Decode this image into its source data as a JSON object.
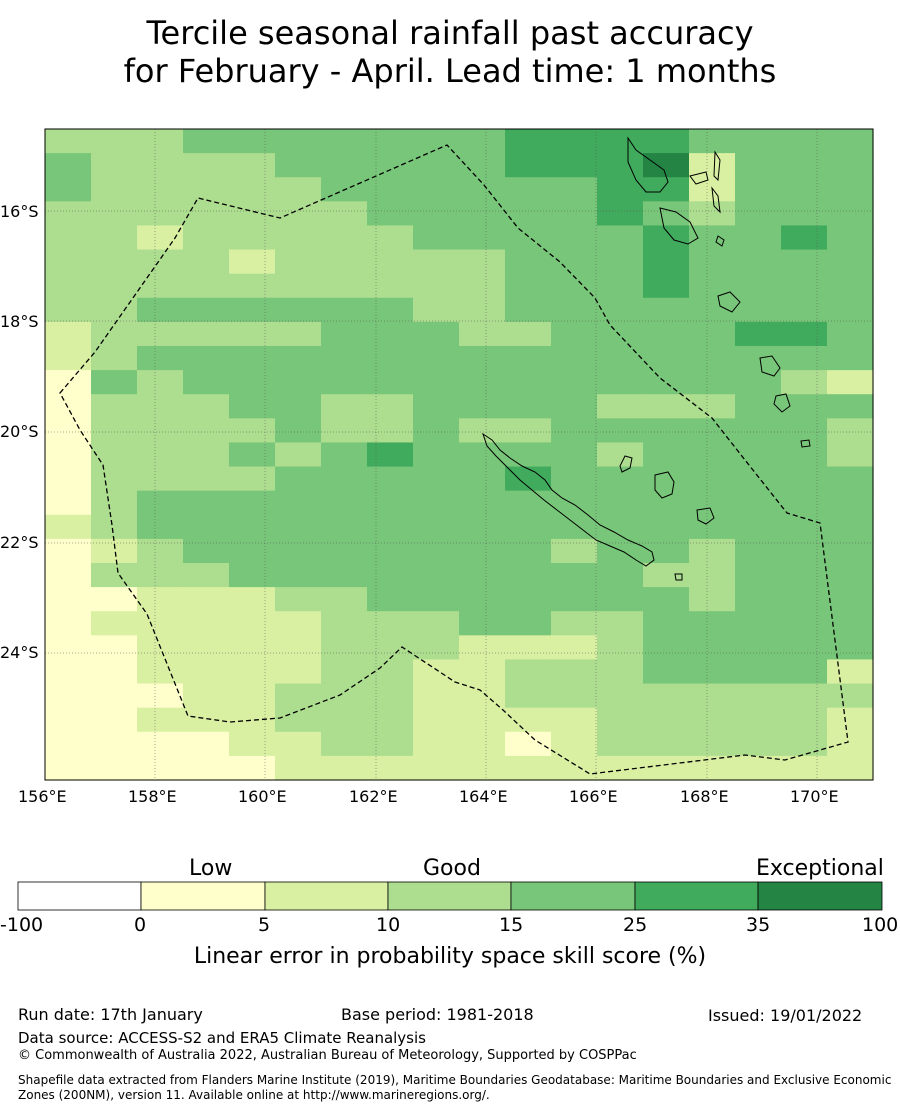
{
  "title": {
    "line1": "Tercile seasonal rainfall past accuracy",
    "line2": "for February - April. Lead time: 1 months"
  },
  "map": {
    "lat_labels": [
      "16°S",
      "18°S",
      "20°S",
      "22°S",
      "24°S"
    ],
    "lon_labels": [
      "156°E",
      "158°E",
      "160°E",
      "162°E",
      "164°E",
      "166°E",
      "168°E",
      "170°E"
    ],
    "boundary_style": "dashed",
    "grid": true
  },
  "colorbar": {
    "category_words": [
      "Low",
      "Good",
      "Exceptional"
    ],
    "ticks": [
      "-100",
      "0",
      "5",
      "10",
      "15",
      "25",
      "35",
      "100"
    ],
    "colors": [
      "#ffffff",
      "#ffffcc",
      "#d9f0a3",
      "#addd8e",
      "#78c679",
      "#41ab5d",
      "#238443"
    ],
    "label": "Linear error in probability space skill score (%)"
  },
  "footer": {
    "run_date": "Run date: 17th January",
    "base_period": "Base period: 1981-2018",
    "issued": "Issued: 19/01/2022",
    "data_source": "Data source: ACCESS-S2 and ERA5 Climate Reanalysis",
    "copyright": "© Commonwealth of Australia 2022, Australian Bureau of Meteorology, Supported by COSPPac",
    "shapefile": "Shapefile data extracted from Flanders Marine Institute (2019), Maritime Boundaries Geodatabase: Maritime Boundaries and Exclusive Economic Zones (200NM), version 11. Available online at http://www.marineregions.org/."
  }
}
